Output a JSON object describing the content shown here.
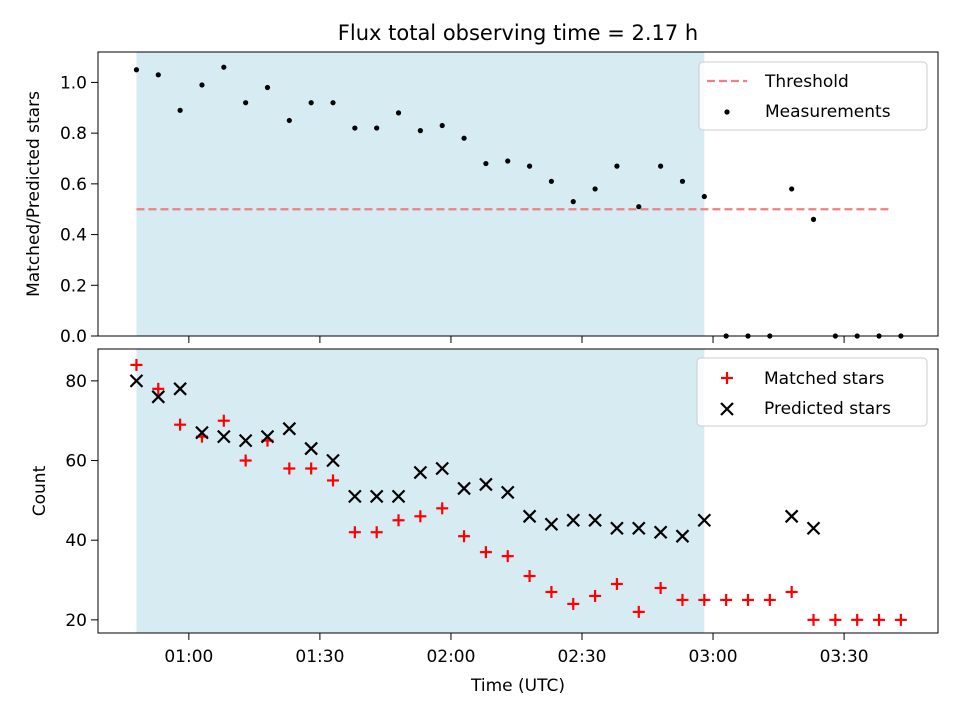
{
  "chart_data": [
    {
      "type": "scatter",
      "title": "Flux total observing time = 2.17 h",
      "xlabel": "",
      "ylabel": "Matched/Predicted stars",
      "ylim": [
        0,
        1.12
      ],
      "yticks": [
        "0.0",
        "0.2",
        "0.4",
        "0.6",
        "0.8",
        "1.0"
      ],
      "shaded_span": {
        "x": [
          "00:48",
          "02:58"
        ],
        "color": "#add8e6"
      },
      "legend_position": "top-right",
      "threshold": {
        "name": "Threshold",
        "x": [
          "00:48",
          "03:41"
        ],
        "y": 0.5,
        "color": "#f08080"
      },
      "series": [
        {
          "name": "Measurements",
          "color": "#000000",
          "marker": "dot",
          "x": [
            "00:48",
            "00:53",
            "00:58",
            "01:03",
            "01:08",
            "01:13",
            "01:18",
            "01:23",
            "01:28",
            "01:33",
            "01:38",
            "01:43",
            "01:48",
            "01:53",
            "01:58",
            "02:03",
            "02:08",
            "02:13",
            "02:18",
            "02:23",
            "02:28",
            "02:33",
            "02:38",
            "02:43",
            "02:48",
            "02:53",
            "02:58",
            "03:03",
            "03:08",
            "03:13",
            "03:18",
            "03:23",
            "03:28",
            "03:33",
            "03:38",
            "03:43"
          ],
          "y": [
            1.05,
            1.03,
            0.89,
            0.99,
            1.06,
            0.92,
            0.98,
            0.85,
            0.92,
            0.92,
            0.82,
            0.82,
            0.88,
            0.81,
            0.83,
            0.78,
            0.68,
            0.69,
            0.67,
            0.61,
            0.53,
            0.58,
            0.67,
            0.51,
            0.67,
            0.61,
            0.55,
            0.0,
            0.0,
            0.0,
            0.58,
            0.46,
            0.0,
            0.0,
            0.0,
            0.0
          ]
        }
      ]
    },
    {
      "type": "scatter",
      "title": "",
      "xlabel": "Time (UTC)",
      "ylabel": "Count",
      "ylim": [
        16.7,
        88
      ],
      "yticks": [
        "20",
        "40",
        "60",
        "80"
      ],
      "xticks": [
        "01:00",
        "01:30",
        "02:00",
        "02:30",
        "03:00",
        "03:30"
      ],
      "shaded_span": {
        "x": [
          "00:48",
          "02:58"
        ],
        "color": "#add8e6"
      },
      "legend_position": "top-right",
      "series": [
        {
          "name": "Matched stars",
          "color": "#ff0000",
          "marker": "plus",
          "x": [
            "00:48",
            "00:53",
            "00:58",
            "01:03",
            "01:08",
            "01:13",
            "01:18",
            "01:23",
            "01:28",
            "01:33",
            "01:38",
            "01:43",
            "01:48",
            "01:53",
            "01:58",
            "02:03",
            "02:08",
            "02:13",
            "02:18",
            "02:23",
            "02:28",
            "02:33",
            "02:38",
            "02:43",
            "02:48",
            "02:53",
            "02:58",
            "03:03",
            "03:08",
            "03:13",
            "03:18",
            "03:23",
            "03:28",
            "03:33",
            "03:38",
            "03:43"
          ],
          "y": [
            84,
            78,
            69,
            66,
            70,
            60,
            65,
            58,
            58,
            55,
            42,
            42,
            45,
            46,
            48,
            41,
            37,
            36,
            31,
            27,
            24,
            26,
            29,
            22,
            28,
            25,
            25,
            25,
            25,
            25,
            27,
            20,
            20,
            20,
            20,
            20
          ]
        },
        {
          "name": "Predicted stars",
          "color": "#000000",
          "marker": "x",
          "x": [
            "00:48",
            "00:53",
            "00:58",
            "01:03",
            "01:08",
            "01:13",
            "01:18",
            "01:23",
            "01:28",
            "01:33",
            "01:38",
            "01:43",
            "01:48",
            "01:53",
            "01:58",
            "02:03",
            "02:08",
            "02:13",
            "02:18",
            "02:23",
            "02:28",
            "02:33",
            "02:38",
            "02:43",
            "02:48",
            "02:53",
            "02:58",
            "03:18",
            "03:23"
          ],
          "y": [
            80,
            76,
            78,
            67,
            66,
            65,
            66,
            68,
            63,
            60,
            51,
            51,
            51,
            57,
            58,
            53,
            54,
            52,
            46,
            44,
            45,
            45,
            43,
            43,
            42,
            41,
            45,
            46,
            43
          ]
        }
      ]
    }
  ]
}
